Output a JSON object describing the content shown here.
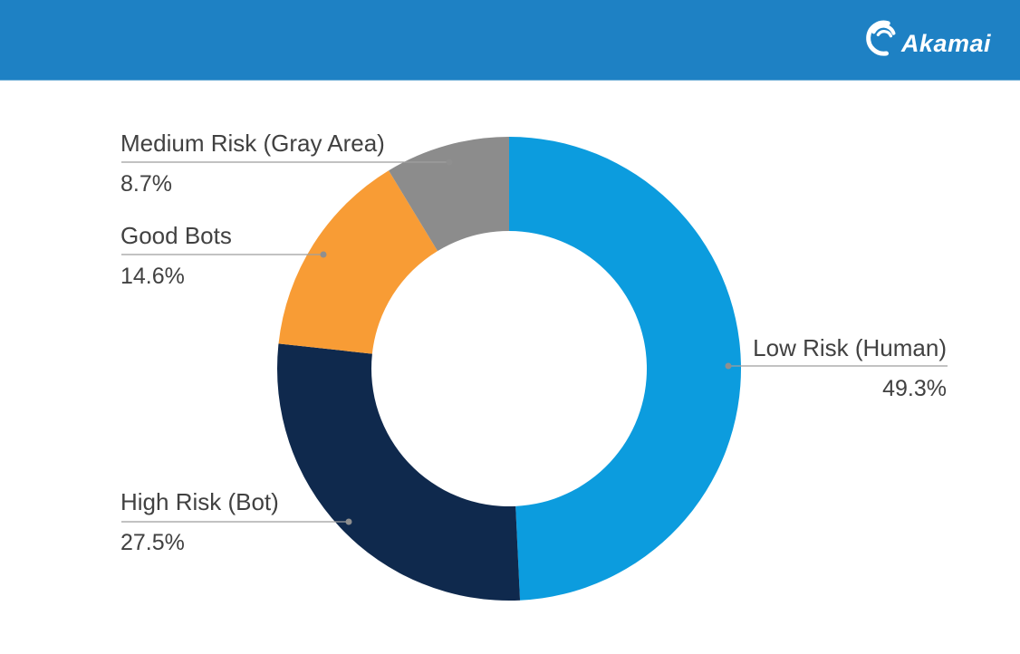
{
  "header": {
    "logo_text": "Akamai",
    "logo_icon": "akamai-wave-icon",
    "background_color": "#1E81C4",
    "logo_color": "#FFFFFF"
  },
  "colors": {
    "background": "#FFFFFF",
    "label_text": "#414141",
    "leader_line": "#9E9E9E",
    "leader_dot": "#8F8F8F"
  },
  "chart_data": {
    "type": "pie",
    "variant": "donut",
    "title": "",
    "legend_position": "callouts",
    "grid": false,
    "start_angle_deg": -90,
    "direction": "clockwise",
    "segments": [
      {
        "id": "low-risk",
        "label": "Low Risk (Human)",
        "value": 49.3,
        "pct_label": "49.3%",
        "color": "#0C9CDE"
      },
      {
        "id": "high-risk",
        "label": "High Risk (Bot)",
        "value": 27.5,
        "pct_label": "27.5%",
        "color": "#0F294D"
      },
      {
        "id": "good-bots",
        "label": "Good Bots",
        "value": 14.6,
        "pct_label": "14.6%",
        "color": "#F89C35"
      },
      {
        "id": "medium-risk",
        "label": "Medium Risk (Gray Area)",
        "value": 8.7,
        "pct_label": "8.7%",
        "color": "#8C8C8C"
      }
    ]
  }
}
